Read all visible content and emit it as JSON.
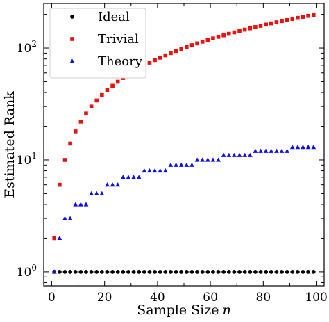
{
  "chart_data": {
    "type": "scatter",
    "title": "",
    "xlabel": "Sample Size n",
    "xlabel_text": "Sample Size",
    "xlabel_var": "n",
    "ylabel": "Estimated Rank",
    "xlim": [
      -3,
      103
    ],
    "ylim": [
      0.75,
      250
    ],
    "yscale": "log",
    "grid": false,
    "legend_position": "top-left",
    "x_ticks": [
      0,
      20,
      40,
      60,
      80,
      100
    ],
    "x_tick_labels": [
      "0",
      "20",
      "40",
      "60",
      "80",
      "100"
    ],
    "y_ticks": [
      1,
      10,
      100
    ],
    "y_tick_labels": [
      {
        "base": "10",
        "exp": "0"
      },
      {
        "base": "10",
        "exp": "1"
      },
      {
        "base": "10",
        "exp": "2"
      }
    ],
    "x": [
      1,
      3,
      5,
      7,
      9,
      11,
      13,
      15,
      17,
      19,
      21,
      23,
      25,
      27,
      29,
      31,
      33,
      35,
      37,
      39,
      41,
      43,
      45,
      47,
      49,
      51,
      53,
      55,
      57,
      59,
      61,
      63,
      65,
      67,
      69,
      71,
      73,
      75,
      77,
      79,
      81,
      83,
      85,
      87,
      89,
      91,
      93,
      95,
      97,
      99
    ],
    "series": [
      {
        "name": "Ideal",
        "marker": "circle",
        "color": "#000000",
        "values": [
          1,
          1,
          1,
          1,
          1,
          1,
          1,
          1,
          1,
          1,
          1,
          1,
          1,
          1,
          1,
          1,
          1,
          1,
          1,
          1,
          1,
          1,
          1,
          1,
          1,
          1,
          1,
          1,
          1,
          1,
          1,
          1,
          1,
          1,
          1,
          1,
          1,
          1,
          1,
          1,
          1,
          1,
          1,
          1,
          1,
          1,
          1,
          1,
          1,
          1
        ]
      },
      {
        "name": "Trivial",
        "marker": "square",
        "color": "#e8120c",
        "values": [
          2,
          6,
          10,
          14,
          18,
          22,
          26,
          30,
          34,
          38,
          42,
          46,
          50,
          54,
          58,
          62,
          66,
          70,
          74,
          78,
          82,
          86,
          90,
          94,
          98,
          102,
          106,
          110,
          114,
          118,
          122,
          126,
          130,
          134,
          138,
          142,
          146,
          150,
          154,
          158,
          162,
          166,
          170,
          174,
          178,
          182,
          186,
          190,
          194,
          198
        ]
      },
      {
        "name": "Theory",
        "marker": "triangle",
        "color": "#1010e0",
        "values": [
          1,
          2,
          3,
          3,
          4,
          4,
          4,
          5,
          5,
          5,
          6,
          6,
          6,
          7,
          7,
          7,
          7,
          8,
          8,
          8,
          8,
          8,
          9,
          9,
          9,
          9,
          9,
          10,
          10,
          10,
          10,
          10,
          11,
          11,
          11,
          11,
          11,
          11,
          12,
          12,
          12,
          12,
          12,
          12,
          12,
          13,
          13,
          13,
          13,
          13
        ]
      }
    ]
  }
}
